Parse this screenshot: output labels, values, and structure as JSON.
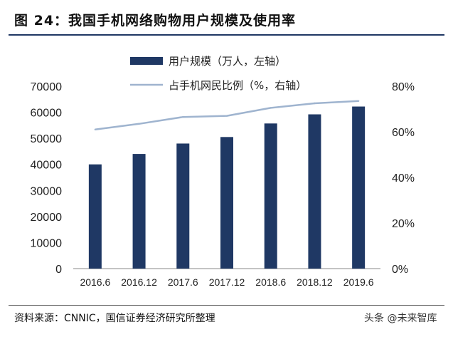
{
  "header": {
    "title": "图 24：我国手机网络购物用户规模及使用率"
  },
  "footer": {
    "source": "资料来源：CNNIC，国信证券经济研究所整理",
    "watermark": "头条 @未来智库"
  },
  "colors": {
    "bar": "#1f3864",
    "line": "#9fb4cf",
    "title_rule": "#1f3864"
  },
  "chart_data": {
    "type": "bar",
    "categories": [
      "2016.6",
      "2016.12",
      "2017.6",
      "2017.12",
      "2018.6",
      "2018.12",
      "2019.6"
    ],
    "series": [
      {
        "name": "用户规模（万人，左轴）",
        "type": "bar",
        "axis": "left",
        "values": [
          40000,
          44000,
          48000,
          50500,
          55700,
          59200,
          62200
        ]
      },
      {
        "name": "占手机网民比例（%，右轴）",
        "type": "line",
        "axis": "right",
        "values": [
          61,
          63.5,
          66.5,
          67,
          70.5,
          72.5,
          73.5
        ]
      }
    ],
    "ylim": [
      0,
      70000
    ],
    "y2lim": [
      0,
      80
    ],
    "yticks": [
      "0",
      "10000",
      "20000",
      "30000",
      "40000",
      "50000",
      "60000",
      "70000"
    ],
    "y2ticks": [
      "0%",
      "20%",
      "40%",
      "60%",
      "80%"
    ],
    "grid": false,
    "legend_position": "top"
  }
}
